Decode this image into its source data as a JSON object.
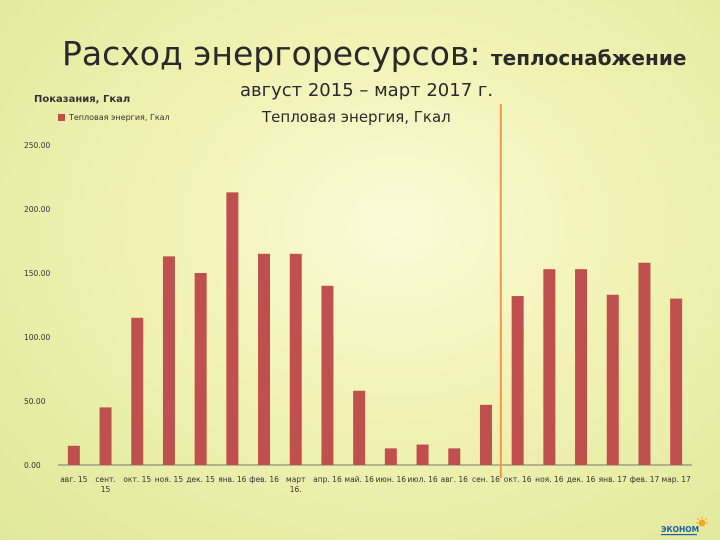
{
  "slide": {
    "title_main": "Расход энергоресурсов: ",
    "title_sub": "теплоснабжение",
    "period": "август 2015 – март 2017 г.",
    "logo_text": "ЭКОНОМ"
  },
  "chart_data": {
    "type": "bar",
    "title": "Тепловая энергия, Гкал",
    "ylabel": "Показания, Гкал",
    "xlabel": "",
    "legend_position": "top-left",
    "grid": false,
    "ylim": [
      0,
      250
    ],
    "yticks": [
      "0.00",
      "50.00",
      "100.00",
      "150.00",
      "200.00",
      "250.00"
    ],
    "categories": [
      "авг. 15",
      "сент. 15",
      "окт. 15",
      "ноя. 15",
      "дек. 15",
      "янв. 16",
      "фев. 16",
      "март 16.",
      "апр. 16",
      "май. 16",
      "июн. 16",
      "июл. 16",
      "авг. 16",
      "сен. 16",
      "окт. 16",
      "ноя. 16",
      "дек. 16",
      "янв. 17",
      "фев. 17",
      "мар. 17"
    ],
    "series": [
      {
        "name": "Тепловая энергия, Гкал",
        "color": "#c0504d",
        "values": [
          15,
          45,
          115,
          163,
          150,
          213,
          165,
          165,
          140,
          58,
          13,
          16,
          13,
          47,
          132,
          153,
          153,
          133,
          158,
          130
        ]
      }
    ],
    "marker_line": {
      "after_category": "сен. 16",
      "color": "#f79646"
    }
  }
}
